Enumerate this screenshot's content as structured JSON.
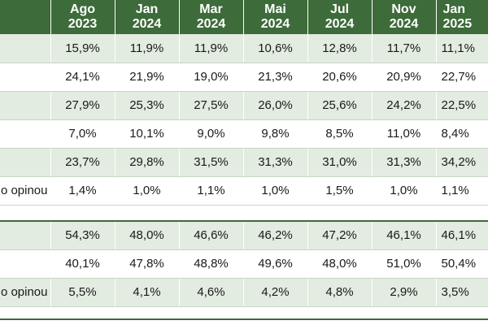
{
  "columns": [
    {
      "month": "Ago",
      "year": "2023"
    },
    {
      "month": "Jan",
      "year": "2024"
    },
    {
      "month": "Mar",
      "year": "2024"
    },
    {
      "month": "Mai",
      "year": "2024"
    },
    {
      "month": "Jul",
      "year": "2024"
    },
    {
      "month": "Nov",
      "year": "2024"
    },
    {
      "month": "Jan",
      "year": "2025"
    }
  ],
  "section1": [
    {
      "label": "",
      "values": [
        "15,9%",
        "11,9%",
        "11,9%",
        "10,6%",
        "12,8%",
        "11,7%",
        "11,1%"
      ]
    },
    {
      "label": "",
      "values": [
        "24,1%",
        "21,9%",
        "19,0%",
        "21,3%",
        "20,6%",
        "20,9%",
        "22,7%"
      ]
    },
    {
      "label": "",
      "values": [
        "27,9%",
        "25,3%",
        "27,5%",
        "26,0%",
        "25,6%",
        "24,2%",
        "22,5%"
      ]
    },
    {
      "label": "",
      "values": [
        "7,0%",
        "10,1%",
        "9,0%",
        "9,8%",
        "8,5%",
        "11,0%",
        "8,4%"
      ]
    },
    {
      "label": "",
      "values": [
        "23,7%",
        "29,8%",
        "31,5%",
        "31,3%",
        "31,0%",
        "31,3%",
        "34,2%"
      ]
    },
    {
      "label": "o opinou",
      "values": [
        "1,4%",
        "1,0%",
        "1,1%",
        "1,0%",
        "1,5%",
        "1,0%",
        "1,1%"
      ]
    }
  ],
  "section2": [
    {
      "label": "",
      "values": [
        "54,3%",
        "48,0%",
        "46,6%",
        "46,2%",
        "47,2%",
        "46,1%",
        "46,1%"
      ]
    },
    {
      "label": "",
      "values": [
        "40,1%",
        "47,8%",
        "48,8%",
        "49,6%",
        "48,0%",
        "51,0%",
        "50,4%"
      ]
    },
    {
      "label": "o opinou",
      "values": [
        "5,5%",
        "4,1%",
        "4,6%",
        "4,2%",
        "4,8%",
        "2,9%",
        "3,5%"
      ]
    }
  ]
}
